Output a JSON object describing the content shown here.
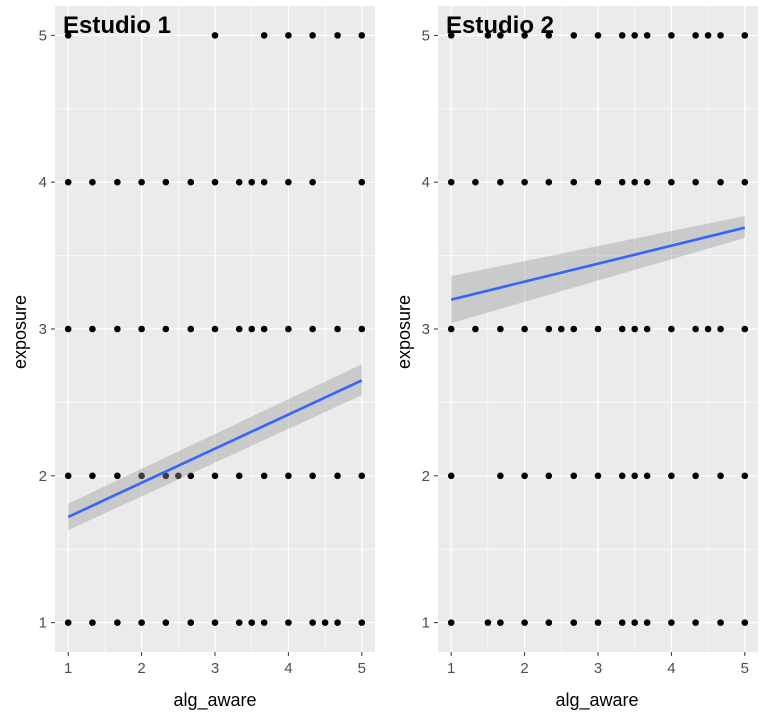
{
  "chart_data": [
    {
      "type": "scatter",
      "title": "Estudio 1",
      "xlabel": "alg_aware",
      "ylabel": "exposure",
      "xlim": [
        0.82,
        5.18
      ],
      "ylim": [
        0.8,
        5.2
      ],
      "xticks": [
        1,
        2,
        3,
        4,
        5
      ],
      "yticks": [
        1,
        2,
        3,
        4,
        5
      ],
      "grid": true,
      "points": [
        {
          "y": 5,
          "x": [
            1,
            3,
            3.67,
            4,
            4.33,
            4.67,
            5
          ]
        },
        {
          "y": 4,
          "x": [
            1,
            1.33,
            1.67,
            2,
            2.33,
            2.67,
            3,
            3.33,
            3.5,
            3.67,
            4,
            4.33,
            5
          ]
        },
        {
          "y": 3,
          "x": [
            1,
            1.33,
            1.67,
            2,
            2.33,
            2.67,
            3,
            3.33,
            3.5,
            3.67,
            4,
            4.33,
            4.67,
            5
          ]
        },
        {
          "y": 2,
          "x": [
            1,
            1.33,
            1.67,
            2,
            2.33,
            2.5,
            2.67,
            3,
            3.33,
            3.67,
            4,
            4.33,
            4.67,
            5
          ]
        },
        {
          "y": 1,
          "x": [
            1,
            1.33,
            1.67,
            2,
            2.33,
            2.67,
            3,
            3.33,
            3.5,
            3.67,
            4,
            4.33,
            4.5,
            4.67,
            5
          ]
        }
      ],
      "fit": {
        "x": [
          1,
          5
        ],
        "y": [
          1.72,
          2.65
        ],
        "ci_low": [
          1.63,
          2.55
        ],
        "ci_high": [
          1.81,
          2.76
        ]
      },
      "colors": {
        "panel": "#ebebeb",
        "grid": "#ffffff",
        "point": "#000000",
        "line": "#3366ff",
        "ribbon": "#999999"
      }
    },
    {
      "type": "scatter",
      "title": "Estudio 2",
      "xlabel": "alg_aware",
      "ylabel": "exposure",
      "xlim": [
        0.82,
        5.18
      ],
      "ylim": [
        0.8,
        5.2
      ],
      "xticks": [
        1,
        2,
        3,
        4,
        5
      ],
      "yticks": [
        1,
        2,
        3,
        4,
        5
      ],
      "grid": true,
      "points": [
        {
          "y": 5,
          "x": [
            1,
            1.5,
            1.67,
            2,
            2.33,
            2.67,
            3,
            3.33,
            3.5,
            3.67,
            4,
            4.33,
            4.5,
            4.67,
            5
          ]
        },
        {
          "y": 4,
          "x": [
            1,
            1.33,
            1.67,
            2,
            2.33,
            2.67,
            3,
            3.33,
            3.5,
            3.67,
            4,
            4.33,
            4.67,
            5
          ]
        },
        {
          "y": 3,
          "x": [
            1,
            1.33,
            1.67,
            2,
            2.33,
            2.5,
            2.67,
            3,
            3.33,
            3.5,
            3.67,
            4,
            4.33,
            4.5,
            4.67,
            5
          ]
        },
        {
          "y": 2,
          "x": [
            1,
            1.67,
            2,
            2.33,
            2.67,
            3,
            3.33,
            3.5,
            3.67,
            4,
            4.33,
            4.67,
            5
          ]
        },
        {
          "y": 1,
          "x": [
            1,
            1.5,
            1.67,
            2,
            2.33,
            2.67,
            3,
            3.33,
            3.5,
            3.67,
            4,
            4.33,
            4.67,
            5
          ]
        }
      ],
      "fit": {
        "x": [
          1,
          5
        ],
        "y": [
          3.2,
          3.69
        ],
        "ci_low": [
          3.04,
          3.62
        ],
        "ci_high": [
          3.36,
          3.77
        ]
      },
      "colors": {
        "panel": "#ebebeb",
        "grid": "#ffffff",
        "point": "#000000",
        "line": "#3366ff",
        "ribbon": "#999999"
      }
    }
  ]
}
